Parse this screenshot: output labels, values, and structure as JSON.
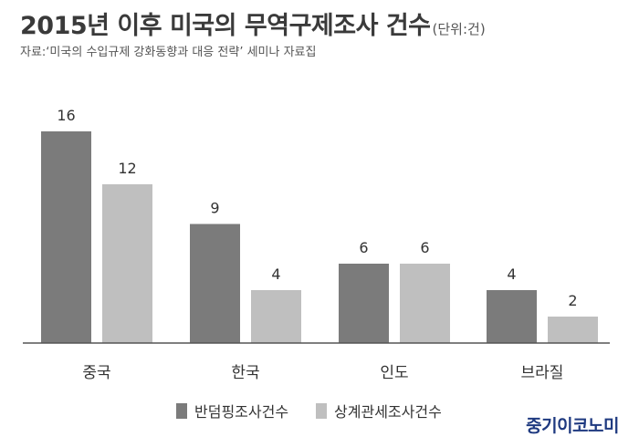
{
  "header": {
    "title": "2015년 이후 미국의 무역구제조사 건수",
    "unit": "(단위:건)",
    "source": "자료:‘미국의 수입규제 강화동향과 대응 전략’ 세미나 자료집"
  },
  "brand": "중기이코노미",
  "colors": {
    "series1": "#7b7b7b",
    "series2": "#bfbfbf",
    "axis": "#555555",
    "text": "#333333"
  },
  "chart_data": {
    "type": "bar",
    "title": "2015년 이후 미국의 무역구제조사 건수",
    "xlabel": "",
    "ylabel": "",
    "categories": [
      "중국",
      "한국",
      "인도",
      "브라질"
    ],
    "series": [
      {
        "name": "반덤핑조사건수",
        "values": [
          16,
          9,
          6,
          4
        ]
      },
      {
        "name": "상계관세조사건수",
        "values": [
          12,
          4,
          6,
          2
        ]
      }
    ],
    "ylim": [
      0,
      16
    ],
    "grid": false,
    "legend": "bottom",
    "data_labels": true
  }
}
